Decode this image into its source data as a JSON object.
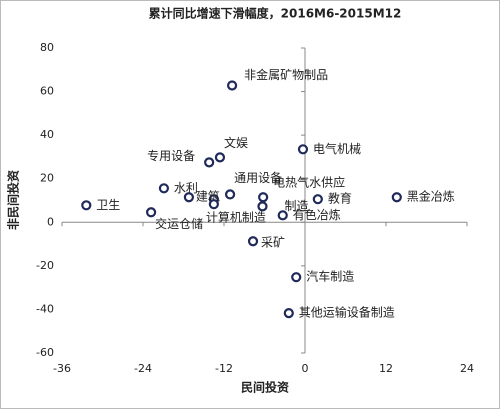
{
  "chart_data": {
    "type": "scatter",
    "title": "累计同比增速下滑幅度，2016M6-2015M12",
    "xlabel": "民间投资",
    "ylabel": "非民间投资",
    "x": [
      -32.4,
      -22.8,
      -20.9,
      -17.2,
      -14.2,
      -12.6,
      -10.8,
      -11.1,
      -13.5,
      -13.5,
      -6.2,
      -6.3,
      -3.3,
      -7.7,
      -0.3,
      1.9,
      13.6,
      -1.3,
      -2.4
    ],
    "y": [
      7.8,
      4.6,
      15.6,
      11.5,
      27.5,
      29.8,
      62.8,
      12.8,
      10.6,
      8.3,
      11.5,
      7.3,
      3.2,
      -8.7,
      33.5,
      10.6,
      11.5,
      -25.2,
      -41.7
    ],
    "labels": [
      "卫生",
      "交运仓储",
      "水利",
      null,
      "专用设备",
      "文娱",
      "非金属矿物制品",
      "通用设备",
      "建筑",
      "计算机制造",
      "电热气水供应",
      "制造",
      "有色冶炼",
      "采矿",
      "电气机械",
      "教育",
      "黑金冶炼",
      "汽车制造",
      "其他运输设备制造"
    ],
    "color": "#1f2a5a",
    "xlim": [
      -36,
      24
    ],
    "ylim": [
      -60,
      80
    ],
    "xticks": [
      -36,
      -24,
      -12,
      0,
      12,
      24
    ],
    "yticks": [
      -60,
      -40,
      -20,
      0,
      20,
      40,
      60,
      80
    ]
  }
}
